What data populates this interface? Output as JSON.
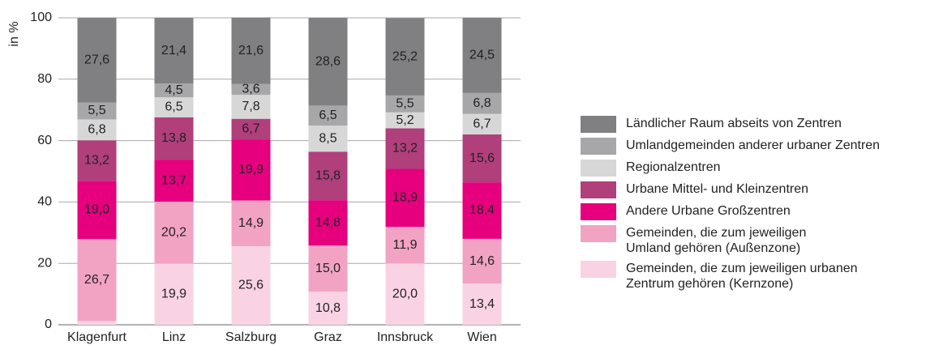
{
  "chart_data": {
    "type": "stacked_bar",
    "y_label": "in %",
    "categories": [
      "Klagenfurt",
      "Linz",
      "Salzburg",
      "Graz",
      "Innsbruck",
      "Wien"
    ],
    "ylim": [
      0,
      100
    ],
    "yticks": [
      0,
      20,
      40,
      60,
      80,
      100
    ],
    "grid": true,
    "legend": "right",
    "series": [
      {
        "name": "Gemeinden, die zum jeweiligen urbanen\nZentrum gehören (Kernzone)",
        "color": "#f9d3e3",
        "label_color": "#333333",
        "values": [
          1.2,
          19.9,
          25.6,
          10.8,
          20.0,
          13.4
        ],
        "value_labels": [
          null,
          "19,9",
          "25,6",
          "10,8",
          "20,0",
          "13,4"
        ]
      },
      {
        "name": "Gemeinden, die zum jeweiligen\nUmland gehören (Außenzone)",
        "color": "#f2a3c4",
        "label_color": "#333333",
        "values": [
          26.7,
          20.2,
          14.9,
          15.0,
          11.9,
          14.6
        ],
        "value_labels": [
          "26,7",
          "20,2",
          "14,9",
          "15,0",
          "11,9",
          "14,6"
        ]
      },
      {
        "name": "Andere Urbane Großzentren",
        "color": "#e6007e",
        "label_color": "#ffffff",
        "values": [
          19.0,
          13.7,
          19.9,
          14.8,
          18.9,
          18.4
        ],
        "value_labels": [
          "19,0",
          "13,7",
          "19,9",
          "14,8",
          "18,9",
          "18,4"
        ]
      },
      {
        "name": "Urbane Mittel- und Kleinzentren",
        "color": "#b03f7c",
        "label_color": "#ffffff",
        "values": [
          13.2,
          13.8,
          6.7,
          15.8,
          13.2,
          15.6
        ],
        "value_labels": [
          "13,2",
          "13,8",
          "6,7",
          "15,8",
          "13,2",
          "15,6"
        ]
      },
      {
        "name": "Regionalzentren",
        "color": "#d7d7d8",
        "label_color": "#333333",
        "values": [
          6.8,
          6.5,
          7.8,
          8.5,
          5.2,
          6.7
        ],
        "value_labels": [
          "6,8",
          "6,5",
          "7,8",
          "8,5",
          "5,2",
          "6,7"
        ]
      },
      {
        "name": "Umlandgemeinden anderer urbaner Zentren",
        "color": "#a7a7a9",
        "label_color": "#ffffff",
        "values": [
          5.5,
          4.5,
          3.6,
          6.5,
          5.5,
          6.8
        ],
        "value_labels": [
          "5,5",
          "4,5",
          "3,6",
          "6,5",
          "5,5",
          "6,8"
        ]
      },
      {
        "name": "Ländlicher Raum abseits von Zentren",
        "color": "#808083",
        "label_color": "#ffffff",
        "values": [
          27.6,
          21.4,
          21.6,
          28.6,
          25.2,
          24.5
        ],
        "value_labels": [
          "27,6",
          "21,4",
          "21,6",
          "28,6",
          "25,2",
          "24,5"
        ]
      }
    ]
  }
}
